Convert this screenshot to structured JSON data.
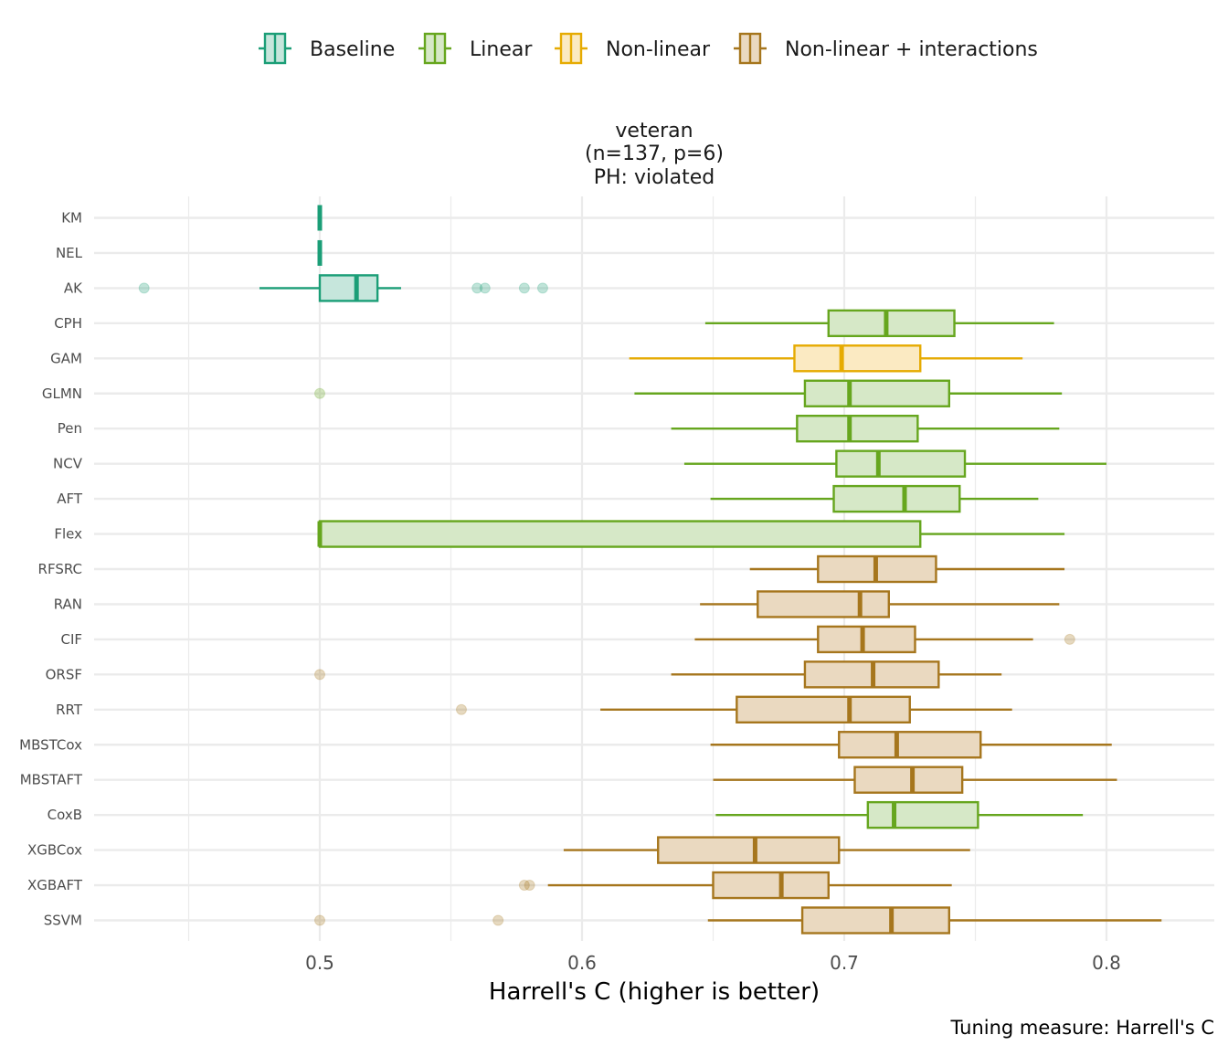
{
  "chart_data": {
    "type": "box",
    "facet": {
      "title_lines": [
        "veteran",
        "(n=137, p=6)",
        "PH: violated"
      ]
    },
    "xlabel": "Harrell's C (higher is better)",
    "ylabel": "",
    "caption": "Tuning measure: Harrell's C",
    "xlim": [
      0.417,
      0.845
    ],
    "xticks": [
      0.5,
      0.6,
      0.7,
      0.8
    ],
    "xtick_labels": [
      "0.5",
      "0.6",
      "0.7",
      "0.8"
    ],
    "grid": true,
    "legend_position": "top",
    "groups": [
      {
        "name": "Baseline",
        "line_color": "#1b9e77",
        "fill_color": "#c6e6dc"
      },
      {
        "name": "Linear",
        "line_color": "#66a61e",
        "fill_color": "#d6e8c7"
      },
      {
        "name": "Non-linear",
        "line_color": "#e6ab02",
        "fill_color": "#fbeac2"
      },
      {
        "name": "Non-linear + interactions",
        "line_color": "#a6761d",
        "fill_color": "#ead9c0"
      }
    ],
    "categories": [
      "KM",
      "NEL",
      "AK",
      "CPH",
      "GAM",
      "GLMN",
      "Pen",
      "NCV",
      "AFT",
      "Flex",
      "RFSRC",
      "RAN",
      "CIF",
      "ORSF",
      "RRT",
      "MBSTCox",
      "MBSTAFT",
      "CoxB",
      "XGBCox",
      "XGBAFT",
      "SSVM"
    ],
    "boxes": [
      {
        "label": "KM",
        "group": "Baseline",
        "whisker_low": 0.5,
        "q1": 0.5,
        "median": 0.5,
        "q3": 0.5,
        "whisker_high": 0.5,
        "outliers": []
      },
      {
        "label": "NEL",
        "group": "Baseline",
        "whisker_low": 0.5,
        "q1": 0.5,
        "median": 0.5,
        "q3": 0.5,
        "whisker_high": 0.5,
        "outliers": []
      },
      {
        "label": "AK",
        "group": "Baseline",
        "whisker_low": 0.477,
        "q1": 0.5,
        "median": 0.514,
        "q3": 0.522,
        "whisker_high": 0.531,
        "outliers": [
          0.433,
          0.56,
          0.563,
          0.578,
          0.585
        ]
      },
      {
        "label": "CPH",
        "group": "Linear",
        "whisker_low": 0.647,
        "q1": 0.694,
        "median": 0.716,
        "q3": 0.742,
        "whisker_high": 0.78,
        "outliers": []
      },
      {
        "label": "GAM",
        "group": "Non-linear",
        "whisker_low": 0.618,
        "q1": 0.681,
        "median": 0.699,
        "q3": 0.729,
        "whisker_high": 0.768,
        "outliers": []
      },
      {
        "label": "GLMN",
        "group": "Linear",
        "whisker_low": 0.62,
        "q1": 0.685,
        "median": 0.702,
        "q3": 0.74,
        "whisker_high": 0.783,
        "outliers": [
          0.5
        ]
      },
      {
        "label": "Pen",
        "group": "Linear",
        "whisker_low": 0.634,
        "q1": 0.682,
        "median": 0.702,
        "q3": 0.728,
        "whisker_high": 0.782,
        "outliers": []
      },
      {
        "label": "NCV",
        "group": "Linear",
        "whisker_low": 0.639,
        "q1": 0.697,
        "median": 0.713,
        "q3": 0.746,
        "whisker_high": 0.8,
        "outliers": []
      },
      {
        "label": "AFT",
        "group": "Linear",
        "whisker_low": 0.649,
        "q1": 0.696,
        "median": 0.723,
        "q3": 0.744,
        "whisker_high": 0.774,
        "outliers": []
      },
      {
        "label": "Flex",
        "group": "Linear",
        "whisker_low": 0.5,
        "q1": 0.5,
        "median": 0.5,
        "q3": 0.729,
        "whisker_high": 0.784,
        "outliers": []
      },
      {
        "label": "RFSRC",
        "group": "Non-linear + interactions",
        "whisker_low": 0.664,
        "q1": 0.69,
        "median": 0.712,
        "q3": 0.735,
        "whisker_high": 0.784,
        "outliers": []
      },
      {
        "label": "RAN",
        "group": "Non-linear + interactions",
        "whisker_low": 0.645,
        "q1": 0.667,
        "median": 0.706,
        "q3": 0.717,
        "whisker_high": 0.782,
        "outliers": []
      },
      {
        "label": "CIF",
        "group": "Non-linear + interactions",
        "whisker_low": 0.643,
        "q1": 0.69,
        "median": 0.707,
        "q3": 0.727,
        "whisker_high": 0.772,
        "outliers": [
          0.786
        ]
      },
      {
        "label": "ORSF",
        "group": "Non-linear + interactions",
        "whisker_low": 0.634,
        "q1": 0.685,
        "median": 0.711,
        "q3": 0.736,
        "whisker_high": 0.76,
        "outliers": [
          0.5
        ]
      },
      {
        "label": "RRT",
        "group": "Non-linear + interactions",
        "whisker_low": 0.607,
        "q1": 0.659,
        "median": 0.702,
        "q3": 0.725,
        "whisker_high": 0.764,
        "outliers": [
          0.554
        ]
      },
      {
        "label": "MBSTCox",
        "group": "Non-linear + interactions",
        "whisker_low": 0.649,
        "q1": 0.698,
        "median": 0.72,
        "q3": 0.752,
        "whisker_high": 0.802,
        "outliers": []
      },
      {
        "label": "MBSTAFT",
        "group": "Non-linear + interactions",
        "whisker_low": 0.65,
        "q1": 0.704,
        "median": 0.726,
        "q3": 0.745,
        "whisker_high": 0.804,
        "outliers": []
      },
      {
        "label": "CoxB",
        "group": "Linear",
        "whisker_low": 0.651,
        "q1": 0.709,
        "median": 0.719,
        "q3": 0.751,
        "whisker_high": 0.791,
        "outliers": []
      },
      {
        "label": "XGBCox",
        "group": "Non-linear + interactions",
        "whisker_low": 0.593,
        "q1": 0.629,
        "median": 0.666,
        "q3": 0.698,
        "whisker_high": 0.748,
        "outliers": []
      },
      {
        "label": "XGBAFT",
        "group": "Non-linear + interactions",
        "whisker_low": 0.587,
        "q1": 0.65,
        "median": 0.676,
        "q3": 0.694,
        "whisker_high": 0.741,
        "outliers": [
          0.578,
          0.58
        ]
      },
      {
        "label": "SSVM",
        "group": "Non-linear + interactions",
        "whisker_low": 0.648,
        "q1": 0.684,
        "median": 0.718,
        "q3": 0.74,
        "whisker_high": 0.821,
        "outliers": [
          0.5,
          0.568
        ]
      }
    ]
  }
}
